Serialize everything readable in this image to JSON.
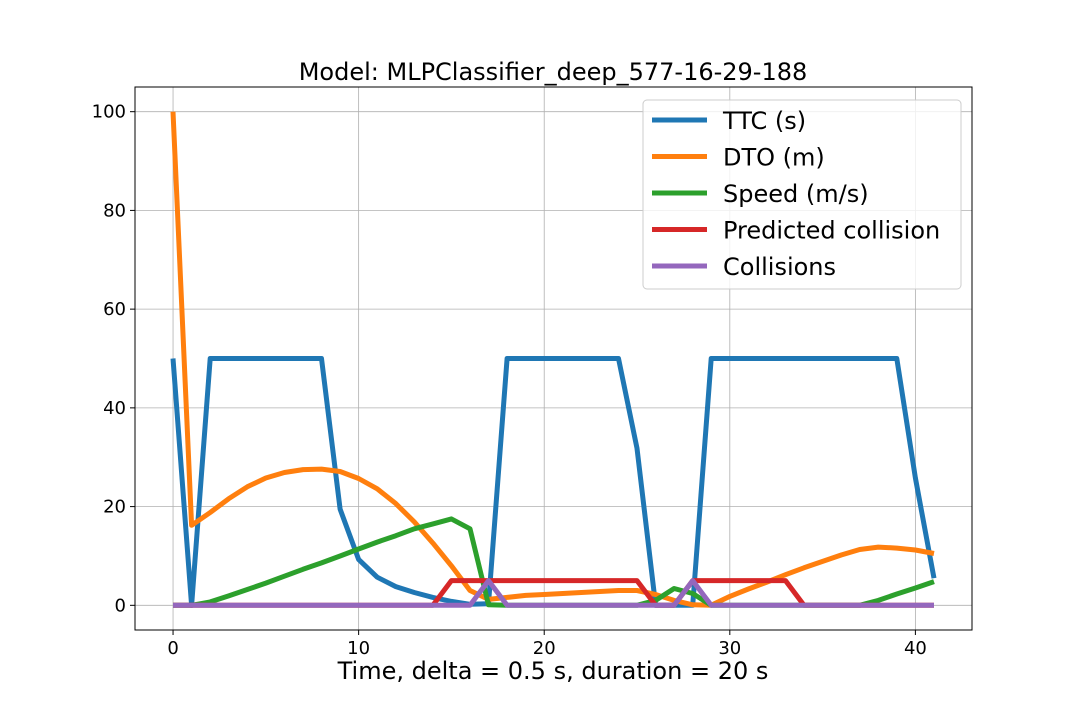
{
  "chart_data": {
    "type": "line",
    "title": "Model: MLPClassifier_deep_577-16-29-188",
    "xlabel": "Time, delta = 0.5 s, duration = 20 s",
    "ylabel": "",
    "xlim": [
      -2.05,
      43.05
    ],
    "ylim": [
      -5,
      105
    ],
    "xticks": [
      0,
      10,
      20,
      30,
      40
    ],
    "yticks": [
      0,
      20,
      40,
      60,
      80,
      100
    ],
    "grid": true,
    "legend_position": "top-right",
    "x": [
      0,
      1,
      2,
      3,
      4,
      5,
      6,
      7,
      8,
      9,
      10,
      11,
      12,
      13,
      14,
      15,
      16,
      17,
      18,
      19,
      20,
      21,
      22,
      23,
      24,
      25,
      26,
      27,
      28,
      29,
      30,
      31,
      32,
      33,
      34,
      35,
      36,
      37,
      38,
      39,
      40,
      41
    ],
    "series": [
      {
        "name": "TTC (s)",
        "color": "#1f77b4",
        "values": [
          50,
          0,
          50,
          50,
          50,
          50,
          50,
          50,
          50,
          19.5,
          9.3,
          5.7,
          3.8,
          2.6,
          1.6,
          0.8,
          0.2,
          0.3,
          50,
          50,
          50,
          50,
          50,
          50,
          50,
          31.8,
          0,
          0,
          0,
          50,
          50,
          50,
          50,
          50,
          50,
          50,
          50,
          50,
          50,
          50,
          25.8,
          5.5
        ]
      },
      {
        "name": "DTO (m)",
        "color": "#ff7f0e",
        "values": [
          100,
          16.2,
          18.8,
          21.6,
          24.0,
          25.8,
          26.9,
          27.5,
          27.6,
          27.1,
          25.7,
          23.6,
          20.6,
          16.9,
          12.6,
          8.0,
          3.0,
          1.2,
          1.6,
          2.0,
          2.2,
          2.4,
          2.6,
          2.8,
          3.0,
          3.0,
          2.2,
          1.0,
          0.1,
          0,
          1.8,
          3.3,
          4.7,
          6.2,
          7.6,
          8.9,
          10.2,
          11.3,
          11.8,
          11.6,
          11.2,
          10.5
        ]
      },
      {
        "name": "Speed (m/s)",
        "color": "#2ca02c",
        "values": [
          0,
          0,
          0.7,
          1.9,
          3.2,
          4.5,
          5.9,
          7.3,
          8.6,
          10.0,
          11.4,
          12.8,
          14.1,
          15.5,
          16.5,
          17.5,
          15.5,
          0.1,
          0,
          0,
          0,
          0,
          0,
          0,
          0,
          0,
          1.0,
          3.4,
          2.4,
          0,
          0,
          0,
          0,
          0,
          0,
          0,
          0,
          0,
          1.0,
          2.3,
          3.5,
          4.8
        ]
      },
      {
        "name": "Predicted collision",
        "color": "#d62728",
        "values": [
          0,
          0,
          0,
          0,
          0,
          0,
          0,
          0,
          0,
          0,
          0,
          0,
          0,
          0,
          0,
          5,
          5,
          5,
          5,
          5,
          5,
          5,
          5,
          5,
          5,
          5,
          0,
          0,
          5,
          5,
          5,
          5,
          5,
          5,
          0,
          0,
          0,
          0,
          0,
          0,
          0,
          0
        ]
      },
      {
        "name": "Collisions",
        "color": "#9467bd",
        "values": [
          0,
          0,
          0,
          0,
          0,
          0,
          0,
          0,
          0,
          0,
          0,
          0,
          0,
          0,
          0,
          0,
          0,
          5,
          0,
          0,
          0,
          0,
          0,
          0,
          0,
          0,
          0,
          0,
          5,
          0,
          0,
          0,
          0,
          0,
          0,
          0,
          0,
          0,
          0,
          0,
          0,
          0
        ]
      }
    ]
  }
}
